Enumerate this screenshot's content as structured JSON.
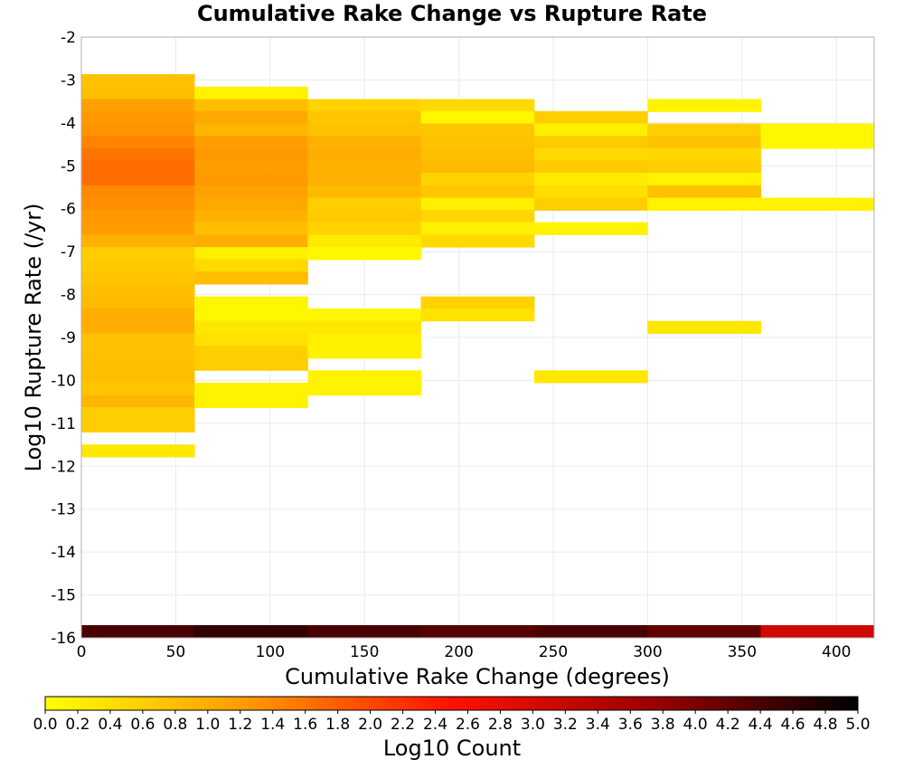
{
  "chart_data": {
    "type": "heatmap",
    "title": "Cumulative Rake Change vs Rupture Rate",
    "xlabel": "Cumulative Rake Change (degrees)",
    "ylabel": "Log10 Rupture Rate (/yr)",
    "xlim": [
      0,
      420
    ],
    "ylim": [
      -16,
      -2
    ],
    "x_ticks": [
      "0",
      "50",
      "100",
      "150",
      "200",
      "250",
      "300",
      "350",
      "400"
    ],
    "y_ticks": [
      "-2",
      "-3",
      "-4",
      "-5",
      "-6",
      "-7",
      "-8",
      "-9",
      "-10",
      "-11",
      "-12",
      "-13",
      "-14",
      "-15",
      "-16"
    ],
    "x_bin_width": 60,
    "y_bin_height": 0.29,
    "grid": true,
    "colorbar": {
      "label": "Log10 Count",
      "min": 0.0,
      "max": 5.0,
      "tick_labels": [
        "0.0",
        "0.2",
        "0.4",
        "0.6",
        "0.8",
        "1.0",
        "1.2",
        "1.4",
        "1.6",
        "1.8",
        "2.0",
        "2.2",
        "2.4",
        "2.6",
        "2.8",
        "3.0",
        "3.2",
        "3.4",
        "3.6",
        "3.8",
        "4.0",
        "4.2",
        "4.4",
        "4.6",
        "4.8",
        "5.0"
      ],
      "colors": [
        "#ffff00",
        "#ff9900",
        "#ff1100",
        "#990000",
        "#000000"
      ],
      "placement": "bottom"
    },
    "columns": [
      {
        "x": 0,
        "cells": [
          {
            "y": -3.16,
            "v": 0.75
          },
          {
            "y": -3.45,
            "v": 0.8
          },
          {
            "y": -3.74,
            "v": 1.15
          },
          {
            "y": -4.02,
            "v": 1.25
          },
          {
            "y": -4.31,
            "v": 1.3
          },
          {
            "y": -4.6,
            "v": 1.45
          },
          {
            "y": -4.89,
            "v": 1.6
          },
          {
            "y": -5.17,
            "v": 1.65
          },
          {
            "y": -5.46,
            "v": 1.65
          },
          {
            "y": -5.75,
            "v": 1.4
          },
          {
            "y": -6.04,
            "v": 1.35
          },
          {
            "y": -6.32,
            "v": 1.25
          },
          {
            "y": -6.61,
            "v": 1.2
          },
          {
            "y": -6.9,
            "v": 0.95
          },
          {
            "y": -7.19,
            "v": 0.6
          },
          {
            "y": -7.47,
            "v": 0.65
          },
          {
            "y": -7.76,
            "v": 0.7
          },
          {
            "y": -8.05,
            "v": 0.8
          },
          {
            "y": -8.34,
            "v": 0.85
          },
          {
            "y": -8.62,
            "v": 1.0
          },
          {
            "y": -8.91,
            "v": 1.0
          },
          {
            "y": -9.2,
            "v": 0.75
          },
          {
            "y": -9.49,
            "v": 0.75
          },
          {
            "y": -9.77,
            "v": 0.8
          },
          {
            "y": -10.06,
            "v": 0.8
          },
          {
            "y": -10.35,
            "v": 0.7
          },
          {
            "y": -10.64,
            "v": 0.9
          },
          {
            "y": -10.92,
            "v": 0.6
          },
          {
            "y": -11.21,
            "v": 0.6
          },
          {
            "y": -11.79,
            "v": 0.3
          },
          {
            "y": -16.0,
            "v": 4.4
          }
        ]
      },
      {
        "x": 60,
        "cells": [
          {
            "y": -3.45,
            "v": 0.15
          },
          {
            "y": -3.74,
            "v": 0.8
          },
          {
            "y": -4.02,
            "v": 1.05
          },
          {
            "y": -4.31,
            "v": 0.9
          },
          {
            "y": -4.6,
            "v": 1.2
          },
          {
            "y": -4.89,
            "v": 1.25
          },
          {
            "y": -5.17,
            "v": 1.2
          },
          {
            "y": -5.46,
            "v": 1.25
          },
          {
            "y": -5.75,
            "v": 1.15
          },
          {
            "y": -6.04,
            "v": 1.05
          },
          {
            "y": -6.32,
            "v": 0.95
          },
          {
            "y": -6.61,
            "v": 0.8
          },
          {
            "y": -6.9,
            "v": 1.0
          },
          {
            "y": -7.19,
            "v": 0.2
          },
          {
            "y": -7.47,
            "v": 0.45
          },
          {
            "y": -7.76,
            "v": 0.8
          },
          {
            "y": -8.34,
            "v": 0.1
          },
          {
            "y": -8.62,
            "v": 0.1
          },
          {
            "y": -8.91,
            "v": 0.3
          },
          {
            "y": -9.2,
            "v": 0.35
          },
          {
            "y": -9.49,
            "v": 0.6
          },
          {
            "y": -9.77,
            "v": 0.6
          },
          {
            "y": -10.35,
            "v": 0.15
          },
          {
            "y": -10.64,
            "v": 0.15
          },
          {
            "y": -16.0,
            "v": 4.6
          }
        ]
      },
      {
        "x": 120,
        "cells": [
          {
            "y": -3.74,
            "v": 0.55
          },
          {
            "y": -4.02,
            "v": 0.7
          },
          {
            "y": -4.31,
            "v": 0.75
          },
          {
            "y": -4.6,
            "v": 0.95
          },
          {
            "y": -4.89,
            "v": 1.0
          },
          {
            "y": -5.17,
            "v": 0.95
          },
          {
            "y": -5.46,
            "v": 0.95
          },
          {
            "y": -5.75,
            "v": 0.85
          },
          {
            "y": -6.04,
            "v": 0.6
          },
          {
            "y": -6.32,
            "v": 0.65
          },
          {
            "y": -6.61,
            "v": 0.55
          },
          {
            "y": -6.9,
            "v": 0.25
          },
          {
            "y": -7.19,
            "v": 0.1
          },
          {
            "y": -8.62,
            "v": 0.1
          },
          {
            "y": -8.91,
            "v": 0.3
          },
          {
            "y": -9.2,
            "v": 0.2
          },
          {
            "y": -9.49,
            "v": 0.15
          },
          {
            "y": -10.06,
            "v": 0.15
          },
          {
            "y": -10.35,
            "v": 0.15
          },
          {
            "y": -16.0,
            "v": 4.4
          }
        ]
      },
      {
        "x": 180,
        "cells": [
          {
            "y": -3.74,
            "v": 0.45
          },
          {
            "y": -4.02,
            "v": 0.1
          },
          {
            "y": -4.31,
            "v": 0.7
          },
          {
            "y": -4.6,
            "v": 0.75
          },
          {
            "y": -4.89,
            "v": 0.8
          },
          {
            "y": -5.17,
            "v": 0.85
          },
          {
            "y": -5.46,
            "v": 0.55
          },
          {
            "y": -5.75,
            "v": 0.7
          },
          {
            "y": -6.04,
            "v": 0.2
          },
          {
            "y": -6.32,
            "v": 0.5
          },
          {
            "y": -6.61,
            "v": 0.2
          },
          {
            "y": -6.9,
            "v": 0.45
          },
          {
            "y": -8.34,
            "v": 0.55
          },
          {
            "y": -8.62,
            "v": 0.35
          },
          {
            "y": -16.0,
            "v": 4.3
          }
        ]
      },
      {
        "x": 240,
        "cells": [
          {
            "y": -4.02,
            "v": 0.6
          },
          {
            "y": -4.31,
            "v": 0.2
          },
          {
            "y": -4.6,
            "v": 0.65
          },
          {
            "y": -4.89,
            "v": 0.45
          },
          {
            "y": -5.17,
            "v": 0.65
          },
          {
            "y": -5.46,
            "v": 0.25
          },
          {
            "y": -5.75,
            "v": 0.4
          },
          {
            "y": -6.04,
            "v": 0.6
          },
          {
            "y": -6.61,
            "v": 0.15
          },
          {
            "y": -10.06,
            "v": 0.3
          },
          {
            "y": -16.0,
            "v": 4.4
          }
        ]
      },
      {
        "x": 300,
        "cells": [
          {
            "y": -3.74,
            "v": 0.15
          },
          {
            "y": -4.31,
            "v": 0.6
          },
          {
            "y": -4.6,
            "v": 0.75
          },
          {
            "y": -4.89,
            "v": 0.5
          },
          {
            "y": -5.17,
            "v": 0.6
          },
          {
            "y": -5.46,
            "v": 0.15
          },
          {
            "y": -5.75,
            "v": 0.75
          },
          {
            "y": -6.04,
            "v": 0.15
          },
          {
            "y": -8.91,
            "v": 0.3
          },
          {
            "y": -16.0,
            "v": 4.2
          }
        ]
      },
      {
        "x": 360,
        "cells": [
          {
            "y": -4.31,
            "v": 0.1
          },
          {
            "y": -4.6,
            "v": 0.1
          },
          {
            "y": -6.04,
            "v": 0.15
          },
          {
            "y": -16.0,
            "v": 3.1
          }
        ]
      }
    ]
  }
}
